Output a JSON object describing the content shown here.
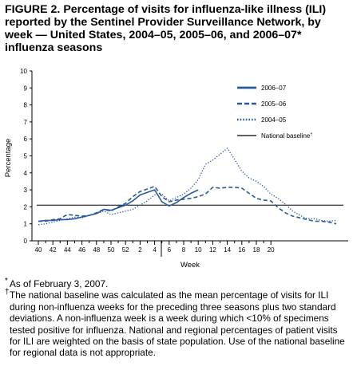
{
  "figure": {
    "title": "FIGURE 2. Percentage of visits for influenza-like illness (ILI) reported by the Sentinel Provider Surveillance Network, by week — United States, 2004–05, 2005–06, and 2006–07* influenza seasons"
  },
  "chart_data": {
    "type": "line",
    "xlabel": "Week",
    "ylabel": "Percentage",
    "ylim": [
      0,
      10
    ],
    "yticks": [
      "0",
      "1",
      "2",
      "3",
      "4",
      "5",
      "6",
      "7",
      "8",
      "9",
      "10"
    ],
    "x_ticks": [
      "40",
      "42",
      "44",
      "46",
      "48",
      "50",
      "52",
      "2",
      "4",
      "6",
      "8",
      "10",
      "12",
      "14",
      "16",
      "18",
      "20"
    ],
    "legend_position": "top-right",
    "grid": false,
    "baseline": {
      "name": "National baseline",
      "name_marker": "†",
      "value": 2.1
    },
    "series": [
      {
        "name": "2006–07",
        "style": "solid",
        "color": "#2a5a9c",
        "values": [
          1.15,
          1.2,
          1.2,
          1.25,
          1.25,
          1.3,
          1.4,
          1.5,
          1.6,
          1.85,
          1.8,
          1.95,
          2.1,
          2.35,
          2.7,
          2.85,
          3.0,
          2.3,
          2.05,
          2.25,
          2.55,
          2.8,
          3.0
        ]
      },
      {
        "name": "2005–06",
        "style": "dashed",
        "color": "#2a5a9c",
        "values": [
          1.15,
          1.15,
          1.25,
          1.3,
          1.55,
          1.5,
          1.45,
          1.5,
          1.65,
          1.85,
          1.75,
          2.0,
          2.2,
          2.6,
          2.9,
          3.05,
          3.2,
          2.6,
          2.3,
          2.4,
          2.45,
          2.5,
          2.6,
          2.75,
          3.15,
          3.1,
          3.15,
          3.15,
          3.1,
          2.8,
          2.5,
          2.4,
          2.35,
          1.95,
          1.65,
          1.45,
          1.35,
          1.25,
          1.15,
          1.15,
          1.1,
          1.0
        ]
      },
      {
        "name": "2004–05",
        "style": "dotted",
        "color": "#2a5a9c",
        "values": [
          0.95,
          1.0,
          1.1,
          1.2,
          1.3,
          1.4,
          1.35,
          1.5,
          1.6,
          1.75,
          1.55,
          1.65,
          1.75,
          1.85,
          2.1,
          2.35,
          2.7,
          2.75,
          2.35,
          2.55,
          2.75,
          3.1,
          3.6,
          4.5,
          4.75,
          5.1,
          5.45,
          4.8,
          4.1,
          3.7,
          3.5,
          3.2,
          2.75,
          2.5,
          2.15,
          1.75,
          1.5,
          1.3,
          1.3,
          1.2,
          1.15,
          1.2
        ]
      }
    ]
  },
  "notes": [
    {
      "symbol": "*",
      "text": "As of February 3, 2007."
    },
    {
      "symbol": "†",
      "text": "The national baseline was calculated as the mean percentage of visits for ILI during non-influenza weeks for the preceding three seasons plus two standard deviations. A non-influenza week is a week during which <10% of specimens tested positive for influenza. National and regional percentages of patient visits for ILI are weighted on the basis of state population. Use of the national baseline for regional data is not appropriate."
    }
  ]
}
